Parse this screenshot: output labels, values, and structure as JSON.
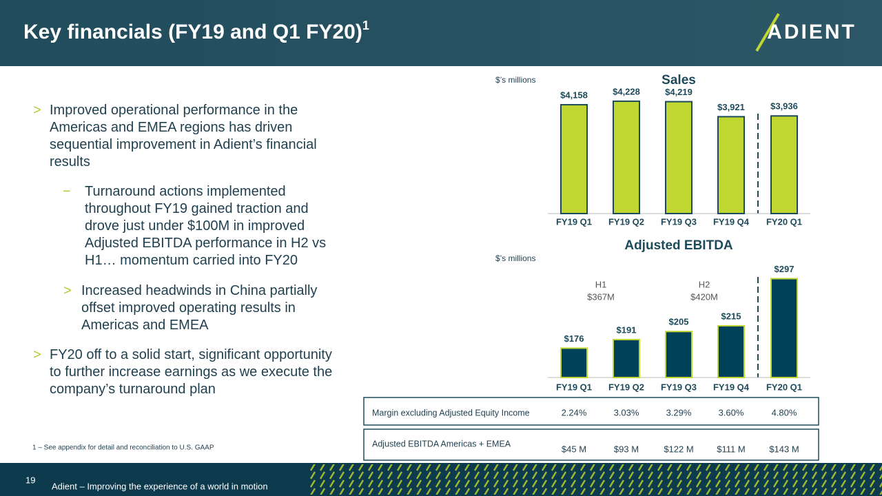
{
  "header": {
    "title": "Key financials (FY19 and Q1 FY20)",
    "title_sup": "1",
    "logo": "ADIENT"
  },
  "bullets": [
    {
      "level": 1,
      "marker": ">",
      "text": "Improved operational performance in the Americas and EMEA regions has driven sequential improvement in Adient’s financial results"
    },
    {
      "level": 2,
      "marker": "−",
      "text": "Turnaround actions implemented throughout FY19 gained traction and drove just under $100M in improved Adjusted EBITDA performance in H2 vs H1… momentum carried into FY20"
    },
    {
      "level": 2,
      "marker": ">",
      "text": "Increased headwinds in China partially offset improved operating results in Americas and EMEA"
    },
    {
      "level": 1,
      "marker": ">",
      "text": "FY20 off to a solid start, significant opportunity to further increase earnings as we execute the company’s turnaround plan"
    }
  ],
  "footnote": "1 – See appendix for detail and reconciliation to U.S. GAAP",
  "chart_data": [
    {
      "type": "bar",
      "title": "Sales",
      "unit_label": "$’s millions",
      "categories": [
        "FY19 Q1",
        "FY19 Q2",
        "FY19 Q3",
        "FY19 Q4",
        "FY20 Q1"
      ],
      "values": [
        4158,
        4228,
        4219,
        3921,
        3936
      ],
      "value_labels": [
        "$4,158",
        "$4,228",
        "$4,219",
        "$3,921",
        "$3,936"
      ],
      "color": "#c0d631",
      "edge_color": "#1d4a5a",
      "ylim": [
        2000,
        4500
      ]
    },
    {
      "type": "bar",
      "title": "Adjusted EBITDA",
      "unit_label": "$’s millions",
      "categories": [
        "FY19 Q1",
        "FY19 Q2",
        "FY19 Q3",
        "FY19 Q4",
        "FY20 Q1"
      ],
      "values": [
        176,
        191,
        205,
        215,
        297
      ],
      "value_labels": [
        "$176",
        "$191",
        "$205",
        "$215",
        "$297"
      ],
      "color": "#00415a",
      "edge_color": "#c0d631",
      "ylim": [
        125,
        300
      ],
      "annotations": [
        "H1",
        "$367M",
        "H2",
        "$420M"
      ]
    }
  ],
  "table": {
    "rows": [
      [
        "Margin excluding Adjusted Equity Income",
        "2.24%",
        "3.03%",
        "3.29%",
        "3.60%",
        "4.80%"
      ],
      [
        "Adjusted EBITDA Americas + EMEA",
        "$45 M",
        "$93 M",
        "$122 M",
        "$111 M",
        "$143 M"
      ]
    ]
  },
  "footer": {
    "page": "19",
    "tagline": "Adient – Improving the experience of a world in motion"
  }
}
